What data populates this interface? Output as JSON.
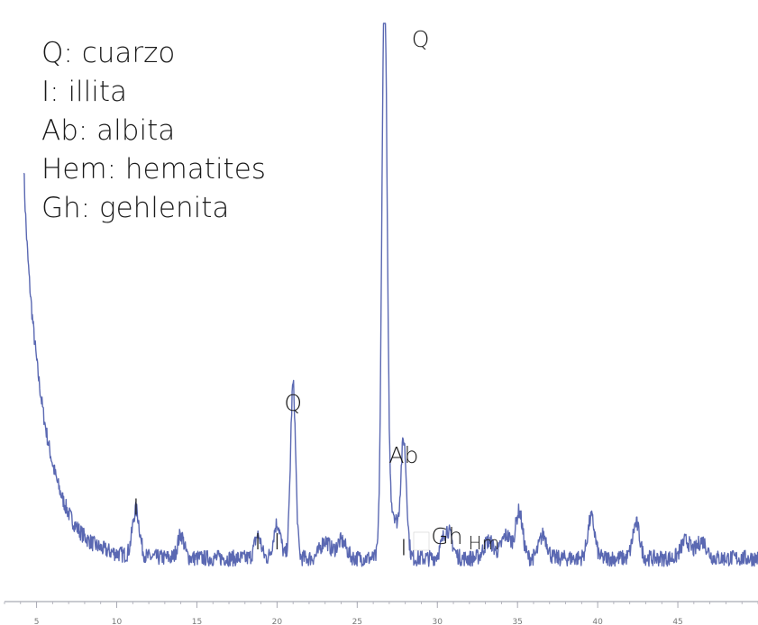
{
  "legend": [
    "Q: cuarzo",
    "I: illita",
    "Ab: albita",
    "Hem: hematites",
    "Gh: gehlenita"
  ],
  "colors": {
    "trace": "#5a68b2",
    "axis": "#a9aab4",
    "text": "#1a1a1a"
  },
  "chart_data": {
    "type": "line",
    "xlim": [
      3,
      50
    ],
    "ylim": [
      0,
      100
    ],
    "x_ticks": [
      5,
      10,
      15,
      20,
      25,
      30,
      35,
      40,
      45
    ],
    "grid": false,
    "baseline": 7.5,
    "noise": 1.4,
    "background_decay": [
      {
        "x0": 4.2,
        "amp": 62,
        "rate": 1.35
      },
      {
        "x0": 4.2,
        "amp": 6,
        "rate": 0.12
      }
    ],
    "peaks": [
      {
        "x": 11.2,
        "h": 8,
        "w": 0.22
      },
      {
        "x": 14.0,
        "h": 4,
        "w": 0.2
      },
      {
        "x": 18.8,
        "h": 4,
        "w": 0.2
      },
      {
        "x": 20.0,
        "h": 6,
        "w": 0.22
      },
      {
        "x": 21.0,
        "h": 30,
        "w": 0.16
      },
      {
        "x": 23.0,
        "h": 3,
        "w": 0.3
      },
      {
        "x": 24.0,
        "h": 3,
        "w": 0.3
      },
      {
        "x": 26.7,
        "h": 100,
        "w": 0.16
      },
      {
        "x": 27.2,
        "h": 8,
        "w": 0.3
      },
      {
        "x": 27.9,
        "h": 20,
        "w": 0.18
      },
      {
        "x": 30.6,
        "h": 5,
        "w": 0.3
      },
      {
        "x": 33.2,
        "h": 3,
        "w": 0.3
      },
      {
        "x": 34.3,
        "h": 4,
        "w": 0.3
      },
      {
        "x": 35.1,
        "h": 8,
        "w": 0.22
      },
      {
        "x": 36.6,
        "h": 4,
        "w": 0.25
      },
      {
        "x": 39.6,
        "h": 7,
        "w": 0.22
      },
      {
        "x": 42.4,
        "h": 6,
        "w": 0.22
      },
      {
        "x": 45.5,
        "h": 3,
        "w": 0.3
      },
      {
        "x": 46.5,
        "h": 3,
        "w": 0.3
      }
    ],
    "annotations": [
      {
        "label": "I",
        "x": 11.2,
        "y": 15
      },
      {
        "label": "I",
        "x": 18.8,
        "y": 9
      },
      {
        "label": "I",
        "x": 20.0,
        "y": 9
      },
      {
        "label": "Q",
        "x": 21.0,
        "y": 33
      },
      {
        "label": "Q",
        "x": 26.7,
        "y": 100
      },
      {
        "label": "Ab",
        "x": 27.9,
        "y": 24
      },
      {
        "label": "I",
        "x": 27.9,
        "y": 8
      },
      {
        "label": "Gh",
        "x": 30.6,
        "y": 10
      },
      {
        "label": "Hm",
        "x": 32.9,
        "y": 9
      }
    ]
  }
}
